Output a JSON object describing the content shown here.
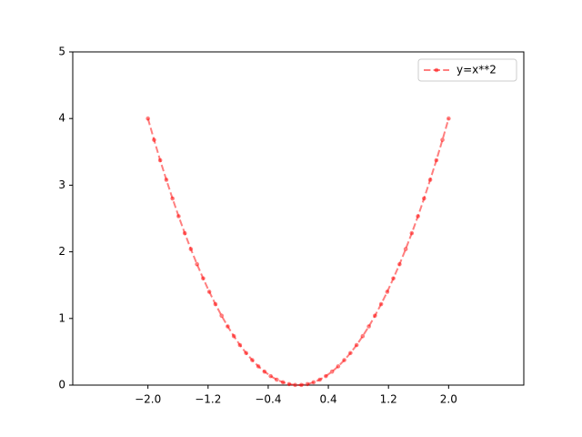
{
  "chart_data": {
    "type": "line",
    "x": [
      -2.0,
      -1.918,
      -1.837,
      -1.755,
      -1.673,
      -1.592,
      -1.51,
      -1.429,
      -1.347,
      -1.265,
      -1.184,
      -1.102,
      -1.02,
      -0.939,
      -0.857,
      -0.776,
      -0.694,
      -0.612,
      -0.531,
      -0.449,
      -0.367,
      -0.286,
      -0.204,
      -0.122,
      -0.041,
      0.041,
      0.122,
      0.204,
      0.286,
      0.367,
      0.449,
      0.531,
      0.612,
      0.694,
      0.776,
      0.857,
      0.939,
      1.02,
      1.102,
      1.184,
      1.265,
      1.347,
      1.429,
      1.51,
      1.592,
      1.673,
      1.755,
      1.837,
      1.918,
      2.0
    ],
    "series": [
      {
        "name": "y=x**2",
        "color": "#ff0000",
        "values": [
          4.0,
          3.68,
          3.374,
          3.081,
          2.8,
          2.534,
          2.28,
          2.041,
          1.814,
          1.601,
          1.401,
          1.215,
          1.041,
          0.881,
          0.735,
          0.601,
          0.481,
          0.375,
          0.281,
          0.202,
          0.135,
          0.082,
          0.042,
          0.015,
          0.002,
          0.002,
          0.015,
          0.042,
          0.082,
          0.135,
          0.202,
          0.281,
          0.375,
          0.481,
          0.601,
          0.735,
          0.881,
          1.041,
          1.215,
          1.401,
          1.601,
          1.814,
          2.041,
          2.28,
          2.534,
          2.8,
          3.081,
          3.374,
          3.68,
          4.0
        ]
      }
    ],
    "xlim": [
      -3,
      3
    ],
    "xticks": [
      {
        "value": -2.0,
        "label": "−2.0"
      },
      {
        "value": -1.2,
        "label": "−1.2"
      },
      {
        "value": -0.4,
        "label": "−0.4"
      },
      {
        "value": 0.4,
        "label": "0.4"
      },
      {
        "value": 1.2,
        "label": "1.2"
      },
      {
        "value": 2.0,
        "label": "2.0"
      }
    ],
    "ylim": [
      0,
      5
    ],
    "yticks": [
      0,
      1,
      2,
      3,
      4,
      5
    ],
    "legend": "upper right"
  }
}
